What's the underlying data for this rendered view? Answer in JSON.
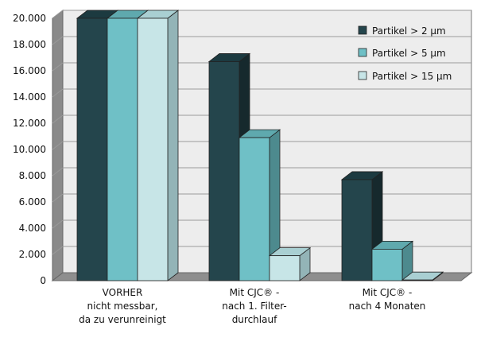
{
  "chart_data": {
    "type": "bar",
    "categories": [
      [
        "VORHER",
        "nicht messbar,",
        "da zu verunreinigt"
      ],
      [
        "Mit CJC® -",
        "nach 1. Filter-",
        "durchlauf"
      ],
      [
        "Mit CJC® -",
        "nach 4 Monaten"
      ]
    ],
    "series": [
      {
        "name": "Partikel > 2 µm",
        "values": [
          20000,
          16700,
          7700
        ]
      },
      {
        "name": "Partikel > 5 µm",
        "values": [
          20000,
          10900,
          2400
        ]
      },
      {
        "name": "Partikel > 15 µm",
        "values": [
          20000,
          1900,
          50
        ]
      }
    ],
    "ylim": [
      0,
      20000
    ],
    "yticks": [
      "0",
      "2.000",
      "4.000",
      "6.000",
      "8.000",
      "10.000",
      "12.000",
      "14.000",
      "16.000",
      "18.000",
      "20.000"
    ],
    "ytick_values": [
      0,
      2000,
      4000,
      6000,
      8000,
      10000,
      12000,
      14000,
      16000,
      18000,
      20000
    ],
    "grid": true,
    "legend_position": "top-right",
    "colors": {
      "series": [
        "#24454c",
        "#6fc0c6",
        "#c7e5e7"
      ],
      "series_top": [
        "#1c3a40",
        "#5fa9ae",
        "#a9cfd2"
      ],
      "series_side": [
        "#16292d",
        "#4d8a8e",
        "#93b4b7"
      ],
      "wall": "#ededed",
      "floor": "#8e8e8e",
      "side_wall": "#8a8a8a",
      "grid": "#9a9a9a"
    }
  }
}
